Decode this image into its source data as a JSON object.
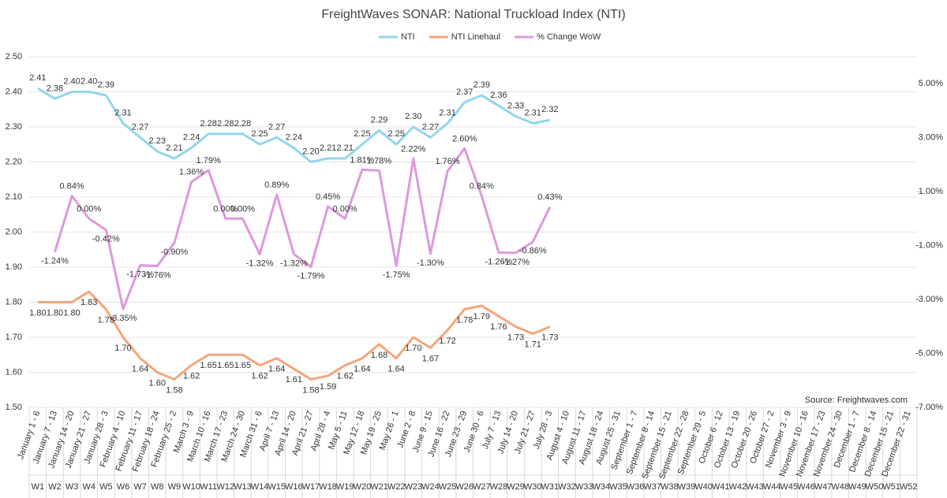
{
  "chart_data": {
    "type": "line",
    "title": "FreightWaves SONAR: National Truckload Index (NTI)",
    "categories": [
      "January 1 - 6",
      "January 7 - 13",
      "January 14 - 20",
      "January 21 - 27",
      "January 28 - 3",
      "February 4 - 10",
      "February 11 - 17",
      "February 18 - 24",
      "February 25 - 2",
      "March 3 - 9",
      "March 10 - 16",
      "March 17 - 23",
      "March 24 - 30",
      "March 31 - 6",
      "April 7 - 13",
      "April 14 - 20",
      "April 21 - 27",
      "April 28 - 4",
      "May 5 - 11",
      "May 12 - 18",
      "May 19 - 25",
      "May 26 - 1",
      "June 2 - 8",
      "June 9 - 15",
      "June 16 - 22",
      "June 23 - 29",
      "June 30 - 6",
      "July 7 - 13",
      "July 14 - 20",
      "July 21 - 27",
      "July 28 - 3",
      "August 4 - 10",
      "August 11 - 17",
      "August 18 - 24",
      "August 25 - 31",
      "September 1 - 7",
      "September 8 - 14",
      "September 15 - 21",
      "September 22 - 28",
      "September 29 - 5",
      "October 6 - 12",
      "October 13 - 19",
      "October 20 - 26",
      "October 27 - 2",
      "November 3 - 9",
      "November 10 - 16",
      "November 17 - 23",
      "November 24 - 30",
      "December 1 - 7",
      "December 8 - 14",
      "December 15 - 21",
      "December 22 - 31"
    ],
    "weeks": [
      "W1",
      "W2",
      "W3",
      "W4",
      "W5",
      "W6",
      "W7",
      "W8",
      "W9",
      "W10",
      "W11",
      "W12",
      "W13",
      "W14",
      "W15",
      "W16",
      "W17",
      "W18",
      "W19",
      "W20",
      "W21",
      "W22",
      "W23",
      "W24",
      "W25",
      "W26",
      "W27",
      "W28",
      "W29",
      "W30",
      "W31",
      "W32",
      "W33",
      "W34",
      "W35",
      "W36",
      "W37",
      "W38",
      "W39",
      "W40",
      "W41",
      "W42",
      "W43",
      "W44",
      "W45",
      "W46",
      "W47",
      "W48",
      "W49",
      "W50",
      "W51",
      "W52"
    ],
    "series": [
      {
        "name": "NTI",
        "color": "#92d5ee",
        "values": [
          2.41,
          2.38,
          2.4,
          2.4,
          2.39,
          2.31,
          2.27,
          2.23,
          2.21,
          2.24,
          2.28,
          2.28,
          2.28,
          2.25,
          2.27,
          2.24,
          2.2,
          2.21,
          2.21,
          2.25,
          2.29,
          2.25,
          2.3,
          2.27,
          2.31,
          2.37,
          2.39,
          2.36,
          2.33,
          2.31,
          2.32,
          null,
          null,
          null,
          null,
          null,
          null,
          null,
          null,
          null,
          null,
          null,
          null,
          null,
          null,
          null,
          null,
          null,
          null,
          null,
          null,
          null
        ],
        "value_labels": [
          "2.41",
          "2.38",
          "2.40",
          "2.40",
          "2.39",
          "2.31",
          "2.27",
          "2.23",
          "2.21",
          "2.24",
          "2.28",
          "2.28",
          "2.28",
          "2.25",
          "2.27",
          "2.24",
          "2.20",
          "2.21",
          "2.21",
          "2.25",
          "2.29",
          "2.25",
          "2.30",
          "2.27",
          "2.31",
          "2.37",
          "2.39",
          "2.36",
          "2.33",
          "2.31",
          "2.32",
          null,
          null,
          null,
          null,
          null,
          null,
          null,
          null,
          null,
          null,
          null,
          null,
          null,
          null,
          null,
          null,
          null,
          null,
          null,
          null,
          null
        ]
      },
      {
        "name": "NTI Linehaul",
        "color": "#f4a57a",
        "values": [
          1.8,
          1.8,
          1.8,
          1.83,
          1.78,
          1.7,
          1.64,
          1.6,
          1.58,
          1.62,
          1.65,
          1.65,
          1.65,
          1.62,
          1.64,
          1.61,
          1.58,
          1.59,
          1.62,
          1.64,
          1.68,
          1.64,
          1.7,
          1.67,
          1.72,
          1.78,
          1.79,
          1.76,
          1.73,
          1.71,
          1.73,
          null,
          null,
          null,
          null,
          null,
          null,
          null,
          null,
          null,
          null,
          null,
          null,
          null,
          null,
          null,
          null,
          null,
          null,
          null,
          null,
          null
        ],
        "value_labels": [
          "1.80",
          "1.80",
          "1.80",
          "1.83",
          "1.78",
          "1.70",
          "1.64",
          "1.60",
          "1.58",
          "1.62",
          "1.65",
          "1.65",
          "1.65",
          "1.62",
          "1.64",
          "1.61",
          "1.58",
          "1.59",
          "1.62",
          "1.64",
          "1.68",
          "1.64",
          "1.70",
          "1.67",
          "1.72",
          "1.78",
          "1.79",
          "1.76",
          "1.73",
          "1.71",
          "1.73",
          null,
          null,
          null,
          null,
          null,
          null,
          null,
          null,
          null,
          null,
          null,
          null,
          null,
          null,
          null,
          null,
          null,
          null,
          null,
          null,
          null
        ]
      },
      {
        "name": "% Change WoW",
        "color": "#dd99dd",
        "axis": "y2",
        "values": [
          null,
          -1.24,
          0.84,
          0.0,
          -0.42,
          -3.35,
          -1.73,
          -1.76,
          -0.9,
          1.36,
          1.79,
          0.0,
          0.0,
          -1.32,
          0.89,
          -1.32,
          -1.79,
          0.45,
          0.0,
          1.81,
          1.78,
          -1.75,
          2.22,
          -1.3,
          1.76,
          2.6,
          0.84,
          -1.26,
          -1.27,
          -0.86,
          0.43,
          null,
          null,
          null,
          null,
          null,
          null,
          null,
          null,
          null,
          null,
          null,
          null,
          null,
          null,
          null,
          null,
          null,
          null,
          null,
          null,
          null
        ],
        "value_labels": [
          null,
          "-1.24%",
          "0.84%",
          "0.00%",
          "-0.42%",
          "-3.35%",
          "-1.73%",
          "-1.76%",
          "-0.90%",
          "1.36%",
          "1.79%",
          "0.00%",
          "0.00%",
          "-1.32%",
          "0.89%",
          "-1.32%",
          "-1.79%",
          "0.45%",
          "0.00%",
          "1.81%",
          "1.78%",
          "-1.75%",
          "2.22%",
          "-1.30%",
          "1.76%",
          "2.60%",
          "0.84%",
          "-1.26%",
          "-1.27%",
          "-0.86%",
          "0.43%",
          null,
          null,
          null,
          null,
          null,
          null,
          null,
          null,
          null,
          null,
          null,
          null,
          null,
          null,
          null,
          null,
          null,
          null,
          null,
          null,
          null
        ]
      }
    ],
    "ylim": [
      1.5,
      2.5
    ],
    "yticks": [
      {
        "value": 1.5,
        "label": "1.50"
      },
      {
        "value": 1.6,
        "label": "1.60"
      },
      {
        "value": 1.7,
        "label": "1.70"
      },
      {
        "value": 1.8,
        "label": "1.80"
      },
      {
        "value": 1.9,
        "label": "1.90"
      },
      {
        "value": 2.0,
        "label": "2.00"
      },
      {
        "value": 2.1,
        "label": "2.10"
      },
      {
        "value": 2.2,
        "label": "2.20"
      },
      {
        "value": 2.3,
        "label": "2.30"
      },
      {
        "value": 2.4,
        "label": "2.40"
      },
      {
        "value": 2.5,
        "label": "2.50"
      }
    ],
    "y2lim": [
      -7,
      6
    ],
    "y2ticks": [
      {
        "value": -7,
        "label": "-7.00%"
      },
      {
        "value": -5,
        "label": "-5.00%"
      },
      {
        "value": -3,
        "label": "-3.00%"
      },
      {
        "value": -1,
        "label": "-1.00%"
      },
      {
        "value": 1,
        "label": "1.00%"
      },
      {
        "value": 3,
        "label": "3.00%"
      },
      {
        "value": 5,
        "label": "5.00%"
      }
    ],
    "grid": true,
    "legend": "top",
    "source": "Source: Freightwaves.com"
  }
}
